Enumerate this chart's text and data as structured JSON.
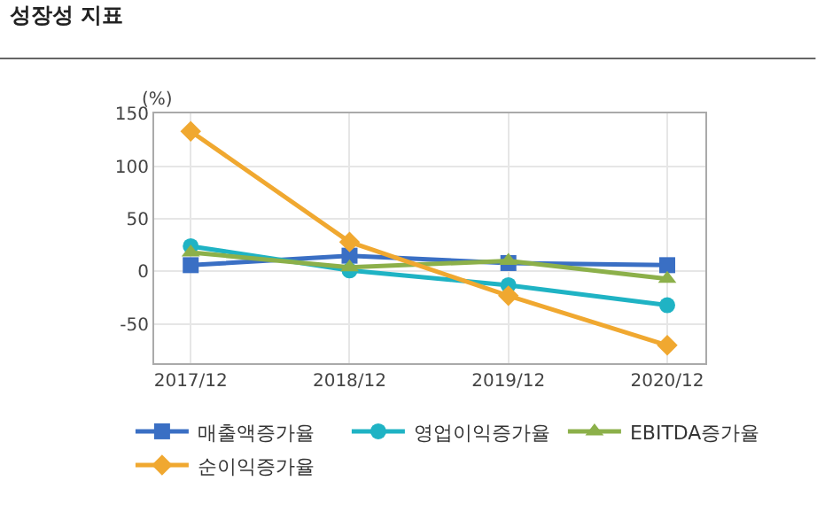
{
  "chart_data": {
    "type": "line",
    "title": "성장성 지표",
    "ylabel": "(%)",
    "categories": [
      "2017/12",
      "2018/12",
      "2019/12",
      "2020/12"
    ],
    "series": [
      {
        "name": "매출액증가율",
        "color": "#3a6fc4",
        "marker": "square",
        "values": [
          6,
          15,
          8,
          6
        ]
      },
      {
        "name": "영업이익증가율",
        "color": "#1fb3c4",
        "marker": "circle",
        "values": [
          24,
          1,
          -13,
          -32
        ]
      },
      {
        "name": "EBITDA증가율",
        "color": "#8cb04a",
        "marker": "triangle",
        "values": [
          18,
          4,
          10,
          -7
        ]
      },
      {
        "name": "순이익증가율",
        "color": "#f0a830",
        "marker": "diamond",
        "values": [
          133,
          28,
          -23,
          -70
        ]
      }
    ],
    "ylim": [
      -87,
      150
    ],
    "yticks": [
      -50,
      0,
      50,
      100,
      150
    ],
    "grid": true,
    "legend": "bottom"
  }
}
